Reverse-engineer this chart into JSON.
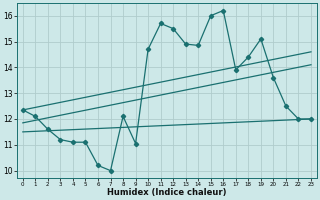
{
  "title": "",
  "xlabel": "Humidex (Indice chaleur)",
  "background_color": "#cde8e8",
  "grid_color": "#b0cccc",
  "line_color": "#1a7070",
  "xlim": [
    -0.5,
    23.5
  ],
  "ylim": [
    9.7,
    16.5
  ],
  "yticks": [
    10,
    11,
    12,
    13,
    14,
    15,
    16
  ],
  "xticks": [
    0,
    1,
    2,
    3,
    4,
    5,
    6,
    7,
    8,
    9,
    10,
    11,
    12,
    13,
    14,
    15,
    16,
    17,
    18,
    19,
    20,
    21,
    22,
    23
  ],
  "line1_x": [
    0,
    1,
    2,
    3,
    4,
    5,
    6,
    7,
    8,
    9,
    10,
    11,
    12,
    13,
    14,
    15,
    16,
    17,
    18,
    19,
    20,
    21,
    22,
    23
  ],
  "line1_y": [
    12.35,
    12.1,
    11.6,
    11.2,
    11.1,
    11.1,
    10.2,
    10.0,
    12.1,
    11.05,
    14.7,
    15.7,
    15.5,
    14.9,
    14.85,
    16.0,
    16.2,
    13.9,
    14.4,
    15.1,
    13.6,
    12.5,
    12.0,
    12.0
  ],
  "line2_x": [
    0,
    23
  ],
  "line2_y": [
    12.35,
    14.6
  ],
  "line3_x": [
    0,
    23
  ],
  "line3_y": [
    11.85,
    14.1
  ],
  "line4_x": [
    0,
    23
  ],
  "line4_y": [
    11.5,
    12.0
  ]
}
